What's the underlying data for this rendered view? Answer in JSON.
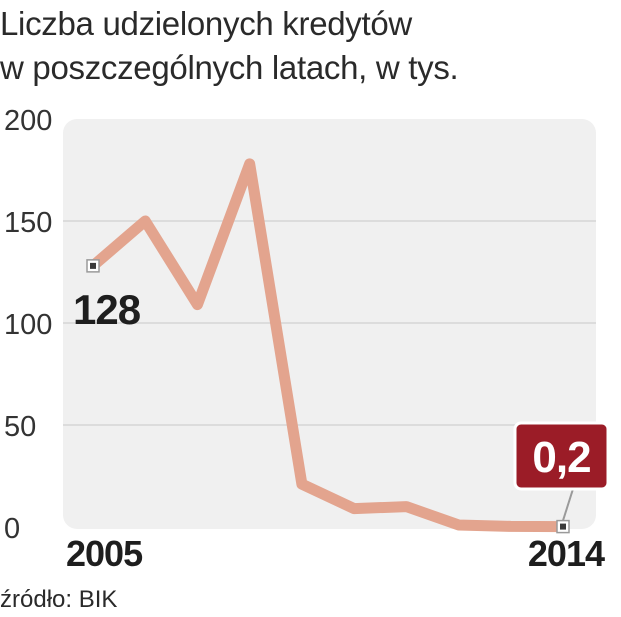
{
  "title_lines": [
    "Liczba udzielonych kredytów",
    "w poszczególnych latach, w tys."
  ],
  "source": "źródło: BIK",
  "colors": {
    "line": "#e3a48e",
    "panel": "#f0f0f0",
    "grid": "#d6d6d6",
    "callout": "#9b1c27"
  },
  "chart_data": {
    "type": "line",
    "title": "Liczba udzielonych kredytów w poszczególnych latach, w tys.",
    "x": [
      2005,
      2006,
      2007,
      2008,
      2009,
      2010,
      2011,
      2012,
      2013,
      2014
    ],
    "series": [
      {
        "values": [
          128,
          150,
          109,
          178,
          21,
          9,
          10,
          1,
          0.3,
          0.2
        ]
      }
    ],
    "yticks": [
      0,
      50,
      100,
      150,
      200
    ],
    "xtick_labels": [
      "2005",
      "2014"
    ],
    "ylim": [
      0,
      200
    ],
    "annotations": [
      {
        "x": 2005,
        "y": 128,
        "label": "128"
      },
      {
        "x": 2014,
        "y": 0.2,
        "label": "0,2"
      }
    ],
    "grid": true
  }
}
